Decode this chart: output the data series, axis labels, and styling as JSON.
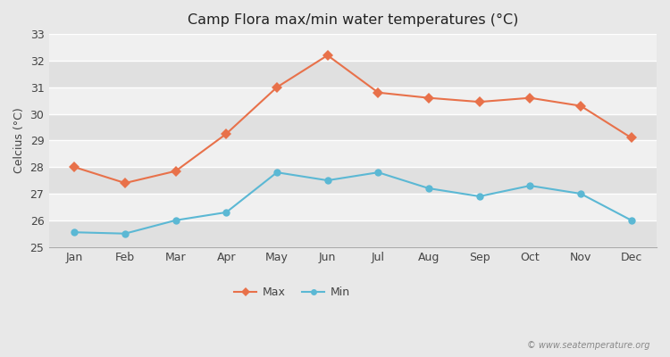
{
  "months": [
    "Jan",
    "Feb",
    "Mar",
    "Apr",
    "May",
    "Jun",
    "Jul",
    "Aug",
    "Sep",
    "Oct",
    "Nov",
    "Dec"
  ],
  "max_temps": [
    28.0,
    27.4,
    27.85,
    29.25,
    31.0,
    32.2,
    30.8,
    30.6,
    30.45,
    30.6,
    30.3,
    29.1
  ],
  "min_temps": [
    25.55,
    25.5,
    26.0,
    26.3,
    27.8,
    27.5,
    27.8,
    27.2,
    26.9,
    27.3,
    27.0,
    26.0
  ],
  "max_color": "#e8714a",
  "min_color": "#5bb8d4",
  "bg_color": "#e8e8e8",
  "plot_bg_color": "#f0f0f0",
  "stripe_color": "#e0e0e0",
  "title": "Camp Flora max/min water temperatures (°C)",
  "ylabel": "Celcius (°C)",
  "ylim": [
    25,
    33
  ],
  "yticks": [
    25,
    26,
    27,
    28,
    29,
    30,
    31,
    32,
    33
  ],
  "watermark": "© www.seatemperature.org",
  "legend_max": "Max",
  "legend_min": "Min"
}
